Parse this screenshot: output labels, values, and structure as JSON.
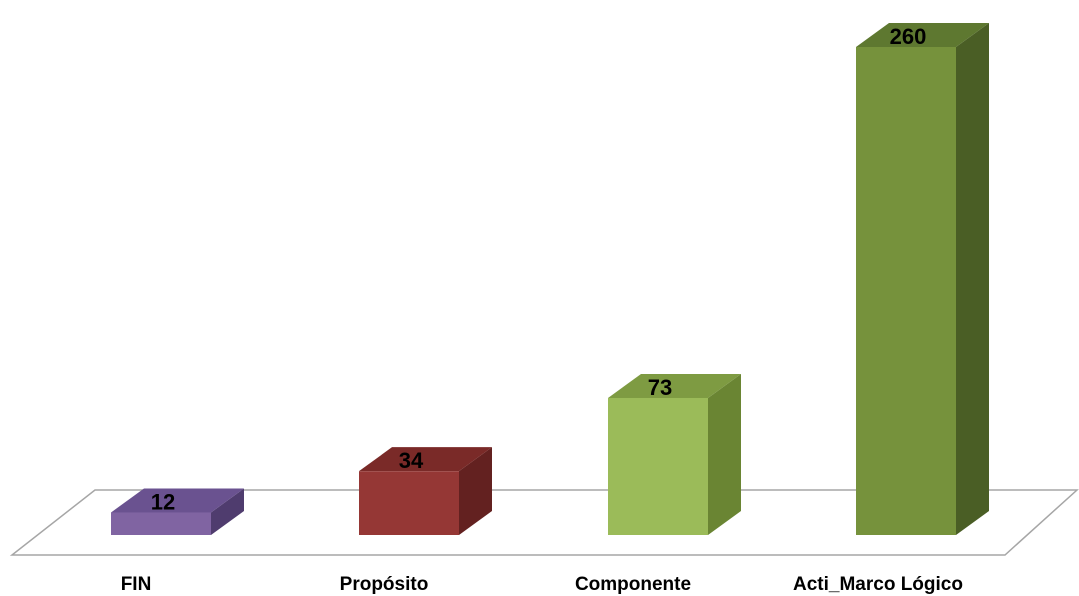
{
  "chart_data": {
    "type": "bar",
    "style": "3d-column",
    "title": "",
    "xlabel": "",
    "ylabel": "",
    "categories": [
      "FIN",
      "Propósito",
      "Componente",
      "Acti_Marco Lógico"
    ],
    "values": [
      12,
      34,
      73,
      260
    ],
    "data_labels": [
      "12",
      "34",
      "73",
      "260"
    ],
    "ylim": [
      0,
      260
    ],
    "grid": false,
    "legend": "none",
    "colors": [
      {
        "front": "#8064A2",
        "top": "#6A5290",
        "side": "#4F3C6E"
      },
      {
        "front": "#953735",
        "top": "#7A2A28",
        "side": "#632120"
      },
      {
        "front": "#9BBB59",
        "top": "#7E9B42",
        "side": "#6A8533"
      },
      {
        "front": "#76923C",
        "top": "#5E7830",
        "side": "#4A5E25"
      }
    ],
    "floor_color": "#A6A6A6"
  }
}
